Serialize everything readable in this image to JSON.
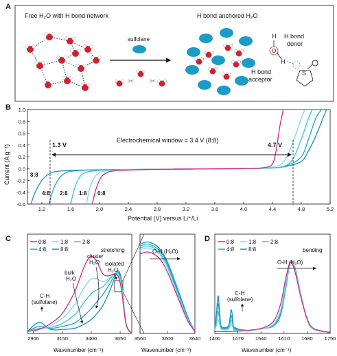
{
  "colors": {
    "r0_0": "#d8247a",
    "r1_8": "#7fd6ea",
    "r2_8": "#37c3df",
    "r4_8": "#17a9c9",
    "r8_8": "#1b8fb5",
    "water_o": "#d3202f",
    "sulfolane_blue": "#1a9cc7",
    "donor_pink": "#d8247a"
  },
  "panel_a": {
    "letter": "A",
    "left_title": "Free H₂O with H bond network",
    "right_title": "H bond anchored H₂O",
    "arrow_label": "sulfolane",
    "h_label": "H",
    "o_label": "O",
    "s_label": "S",
    "donor_label_1": "H bond",
    "donor_label_2": "donor",
    "acceptor_label_1": "H bond",
    "acceptor_label_2": "acceptor"
  },
  "panel_b": {
    "letter": "B",
    "annotation_window": "Electrochemical window = 3.4 V (8:8)",
    "marker_left": "1.3 V",
    "marker_right": "4.7 V",
    "ratio_labels": [
      "8:8",
      "4:8",
      "2:8",
      "1:8",
      "0:8"
    ]
  },
  "panel_c": {
    "letter": "C",
    "mode_label": "stretching",
    "legend": [
      "0:8",
      "1:8",
      "2:8",
      "4:8",
      "8:8"
    ],
    "annot_ch_1": "C-H",
    "annot_ch_2": "(sulfolane)",
    "annot_bulk_1": "bulk",
    "annot_bulk_2": "H₂O",
    "annot_cluster_1": "cluster",
    "annot_cluster_2": "H₂O",
    "annot_isolated_1": "isolated",
    "annot_isolated_2": "H₂O",
    "annot_oh": "O-H (H₂O)"
  },
  "panel_d": {
    "letter": "D",
    "mode_label": "bending",
    "legend": [
      "0:8",
      "1:8",
      "2:8",
      "4:8",
      "8:8"
    ],
    "annot_ch_1": "C-H",
    "annot_ch_2": "(sulfolane)",
    "annot_oh": "O-H (H₂O)"
  },
  "chart_data": [
    {
      "type": "line",
      "panel": "B",
      "xlabel": "Potential (V) versus Li⁺/Li",
      "ylabel": "Current (A g⁻¹)",
      "xlim": [
        1.0,
        5.2
      ],
      "ylim": [
        -0.6,
        1.0
      ],
      "xticks": [
        1.2,
        1.6,
        2.0,
        2.4,
        2.8,
        3.2,
        3.6,
        4.0,
        4.4,
        4.8,
        5.2
      ],
      "yticks": [
        -0.6,
        -0.4,
        -0.2,
        0.0,
        0.2,
        0.4,
        0.6,
        0.8,
        1.0
      ],
      "series": [
        {
          "name": "8:8",
          "x": [
            1.05,
            1.1,
            1.2,
            1.3,
            1.4,
            1.6,
            2.0,
            3.0,
            4.0,
            4.4,
            4.6,
            4.8,
            4.9,
            5.0,
            5.1,
            5.15
          ],
          "y": [
            -0.6,
            -0.42,
            -0.2,
            -0.09,
            -0.05,
            -0.03,
            -0.02,
            -0.01,
            0.0,
            0.01,
            0.04,
            0.12,
            0.3,
            0.55,
            0.85,
            1.0
          ]
        },
        {
          "name": "4:8",
          "x": [
            1.3,
            1.36,
            1.45,
            1.55,
            1.7,
            2.0,
            3.0,
            4.0,
            4.4,
            4.6,
            4.8,
            4.9,
            5.0,
            5.08
          ],
          "y": [
            -0.6,
            -0.35,
            -0.15,
            -0.06,
            -0.035,
            -0.02,
            -0.01,
            0.0,
            0.01,
            0.05,
            0.2,
            0.5,
            0.85,
            1.0
          ]
        },
        {
          "name": "2:8",
          "x": [
            1.6,
            1.65,
            1.72,
            1.8,
            1.95,
            2.2,
            3.0,
            4.0,
            4.4,
            4.6,
            4.7,
            4.8,
            4.9,
            4.95
          ],
          "y": [
            -0.6,
            -0.35,
            -0.15,
            -0.07,
            -0.035,
            -0.02,
            -0.01,
            0.0,
            0.01,
            0.06,
            0.2,
            0.5,
            0.85,
            1.0
          ]
        },
        {
          "name": "1:8",
          "x": [
            1.82,
            1.86,
            1.93,
            2.0,
            2.1,
            2.4,
            3.0,
            4.0,
            4.3,
            4.5,
            4.6,
            4.7,
            4.8,
            4.85
          ],
          "y": [
            -0.6,
            -0.35,
            -0.15,
            -0.07,
            -0.04,
            -0.02,
            -0.01,
            0.0,
            0.01,
            0.06,
            0.2,
            0.5,
            0.85,
            1.0
          ]
        },
        {
          "name": "0:8",
          "x": [
            1.9,
            1.95,
            2.02,
            2.1,
            2.2,
            2.5,
            3.0,
            4.0,
            4.3,
            4.4,
            4.45,
            4.5,
            4.55
          ],
          "y": [
            -0.6,
            -0.35,
            -0.15,
            -0.07,
            -0.04,
            -0.02,
            -0.01,
            0.0,
            0.02,
            0.08,
            0.3,
            0.7,
            1.0
          ]
        }
      ]
    },
    {
      "type": "line",
      "panel": "C-main",
      "xlabel": "Wavenumber (cm⁻¹)",
      "xlim": [
        2850,
        3750
      ],
      "xticks": [
        2900,
        3150,
        3400,
        3650
      ],
      "series": [
        {
          "name": "0:8",
          "x": [
            2850,
            2950,
            3050,
            3150,
            3250,
            3300,
            3350,
            3400,
            3450,
            3500,
            3550,
            3600,
            3630,
            3660,
            3700,
            3750
          ],
          "y": [
            0.02,
            0.04,
            0.1,
            0.2,
            0.4,
            0.55,
            0.7,
            0.78,
            0.72,
            0.6,
            0.58,
            0.6,
            0.58,
            0.45,
            0.1,
            0.0
          ]
        },
        {
          "name": "1:8",
          "x": [
            2850,
            2950,
            3050,
            3150,
            3250,
            3300,
            3350,
            3400,
            3450,
            3500,
            3550,
            3600,
            3630,
            3660,
            3700,
            3750
          ],
          "y": [
            0.02,
            0.04,
            0.08,
            0.15,
            0.28,
            0.38,
            0.48,
            0.55,
            0.55,
            0.52,
            0.55,
            0.6,
            0.6,
            0.48,
            0.1,
            0.0
          ]
        },
        {
          "name": "2:8",
          "x": [
            2850,
            2950,
            3050,
            3150,
            3250,
            3300,
            3350,
            3400,
            3450,
            3500,
            3550,
            3600,
            3630,
            3660,
            3700,
            3750
          ],
          "y": [
            0.02,
            0.05,
            0.06,
            0.1,
            0.18,
            0.25,
            0.33,
            0.4,
            0.44,
            0.47,
            0.53,
            0.6,
            0.61,
            0.5,
            0.1,
            0.0
          ]
        },
        {
          "name": "4:8",
          "x": [
            2850,
            2950,
            3050,
            3150,
            3250,
            3300,
            3350,
            3400,
            3450,
            3500,
            3550,
            3600,
            3630,
            3660,
            3700,
            3750
          ],
          "y": [
            0.02,
            0.07,
            0.05,
            0.07,
            0.1,
            0.14,
            0.19,
            0.25,
            0.32,
            0.39,
            0.48,
            0.58,
            0.62,
            0.52,
            0.1,
            0.0
          ]
        },
        {
          "name": "8:8",
          "x": [
            2850,
            2950,
            3050,
            3150,
            3250,
            3300,
            3350,
            3400,
            3450,
            3500,
            3550,
            3600,
            3630,
            3660,
            3700,
            3750
          ],
          "y": [
            0.02,
            0.11,
            0.04,
            0.04,
            0.05,
            0.07,
            0.1,
            0.14,
            0.2,
            0.28,
            0.4,
            0.55,
            0.63,
            0.54,
            0.1,
            0.0
          ]
        }
      ]
    },
    {
      "type": "line",
      "panel": "C-zoom",
      "xlabel": "Wavenumber (cm⁻¹)",
      "xlim": [
        3560,
        3640
      ],
      "xticks": [
        3560,
        3600,
        3640
      ],
      "series": [
        {
          "name": "0:8",
          "x": [
            3560,
            3570,
            3580,
            3590,
            3600,
            3610,
            3620,
            3630,
            3640
          ],
          "y": [
            0.8,
            0.82,
            0.8,
            0.74,
            0.62,
            0.45,
            0.28,
            0.12,
            0.02
          ]
        },
        {
          "name": "1:8",
          "x": [
            3560,
            3570,
            3580,
            3590,
            3600,
            3610,
            3620,
            3630,
            3640
          ],
          "y": [
            0.84,
            0.86,
            0.84,
            0.78,
            0.66,
            0.48,
            0.3,
            0.13,
            0.02
          ]
        },
        {
          "name": "2:8",
          "x": [
            3560,
            3570,
            3580,
            3590,
            3600,
            3610,
            3620,
            3630,
            3640
          ],
          "y": [
            0.86,
            0.88,
            0.86,
            0.8,
            0.68,
            0.5,
            0.32,
            0.14,
            0.02
          ]
        },
        {
          "name": "4:8",
          "x": [
            3560,
            3570,
            3580,
            3590,
            3600,
            3610,
            3620,
            3630,
            3640
          ],
          "y": [
            0.88,
            0.9,
            0.88,
            0.82,
            0.7,
            0.52,
            0.33,
            0.15,
            0.02
          ]
        },
        {
          "name": "8:8",
          "x": [
            3560,
            3570,
            3580,
            3590,
            3600,
            3610,
            3620,
            3630,
            3640
          ],
          "y": [
            0.9,
            0.92,
            0.9,
            0.84,
            0.72,
            0.54,
            0.35,
            0.16,
            0.02
          ]
        }
      ]
    },
    {
      "type": "line",
      "panel": "D",
      "xlabel": "Wavenumber (cm⁻¹)",
      "xlim": [
        1400,
        1750
      ],
      "xticks": [
        1400,
        1470,
        1540,
        1610,
        1680,
        1750
      ],
      "series": [
        {
          "name": "0:8",
          "x": [
            1400,
            1450,
            1500,
            1550,
            1580,
            1600,
            1615,
            1630,
            1645,
            1660,
            1680,
            1700,
            1750
          ],
          "y": [
            0.02,
            0.02,
            0.03,
            0.06,
            0.13,
            0.3,
            0.55,
            0.72,
            0.6,
            0.38,
            0.15,
            0.05,
            0.01
          ]
        },
        {
          "name": "1:8",
          "x": [
            1400,
            1405,
            1410,
            1415,
            1420,
            1440,
            1445,
            1450,
            1455,
            1460,
            1500,
            1550,
            1580,
            1600,
            1615,
            1630,
            1645,
            1660,
            1680,
            1700,
            1750
          ],
          "y": [
            0.03,
            0.08,
            0.14,
            0.08,
            0.04,
            0.04,
            0.06,
            0.09,
            0.06,
            0.03,
            0.03,
            0.05,
            0.1,
            0.24,
            0.5,
            0.72,
            0.62,
            0.4,
            0.14,
            0.04,
            0.01
          ]
        },
        {
          "name": "2:8",
          "x": [
            1400,
            1405,
            1410,
            1415,
            1420,
            1440,
            1445,
            1450,
            1455,
            1460,
            1500,
            1550,
            1580,
            1600,
            1615,
            1630,
            1645,
            1660,
            1680,
            1700,
            1750
          ],
          "y": [
            0.03,
            0.12,
            0.22,
            0.12,
            0.05,
            0.05,
            0.08,
            0.13,
            0.08,
            0.04,
            0.03,
            0.05,
            0.09,
            0.22,
            0.48,
            0.72,
            0.62,
            0.4,
            0.14,
            0.04,
            0.01
          ]
        },
        {
          "name": "4:8",
          "x": [
            1400,
            1405,
            1410,
            1415,
            1420,
            1440,
            1445,
            1450,
            1455,
            1460,
            1500,
            1550,
            1580,
            1600,
            1615,
            1630,
            1645,
            1660,
            1680,
            1700,
            1750
          ],
          "y": [
            0.03,
            0.16,
            0.3,
            0.16,
            0.06,
            0.06,
            0.1,
            0.18,
            0.1,
            0.05,
            0.03,
            0.05,
            0.08,
            0.2,
            0.46,
            0.72,
            0.63,
            0.4,
            0.14,
            0.04,
            0.01
          ]
        },
        {
          "name": "8:8",
          "x": [
            1400,
            1405,
            1410,
            1415,
            1420,
            1440,
            1445,
            1450,
            1455,
            1460,
            1500,
            1550,
            1580,
            1600,
            1615,
            1630,
            1645,
            1660,
            1680,
            1700,
            1750
          ],
          "y": [
            0.03,
            0.2,
            0.38,
            0.2,
            0.07,
            0.07,
            0.13,
            0.24,
            0.13,
            0.06,
            0.03,
            0.05,
            0.08,
            0.19,
            0.45,
            0.72,
            0.64,
            0.41,
            0.14,
            0.04,
            0.01
          ]
        }
      ]
    }
  ]
}
